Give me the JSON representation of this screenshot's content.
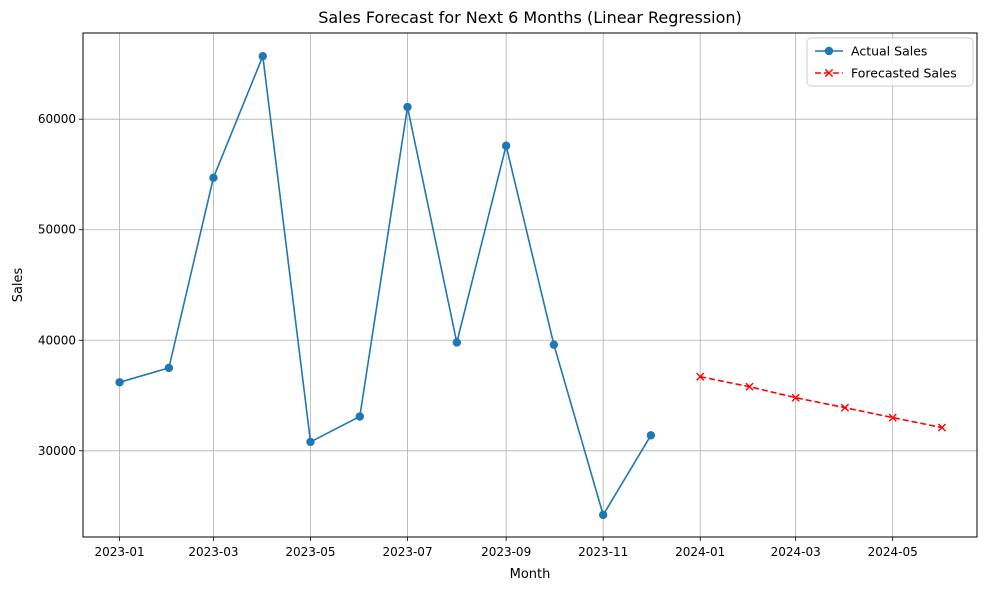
{
  "chart_data": {
    "type": "line",
    "title": "Sales Forecast for Next 6 Months (Linear Regression)",
    "xlabel": "Month",
    "ylabel": "Sales",
    "x_axis_type": "date",
    "xlim": [
      "2022-12-09",
      "2024-06-23"
    ],
    "ylim": [
      22200,
      67800
    ],
    "x_ticks": [
      "2023-01",
      "2023-03",
      "2023-05",
      "2023-07",
      "2023-09",
      "2023-11",
      "2024-01",
      "2024-03",
      "2024-05"
    ],
    "y_ticks": [
      30000,
      40000,
      50000,
      60000
    ],
    "grid": true,
    "legend_position": "top-right",
    "series": [
      {
        "name": "Actual Sales",
        "color": "#1f77b4",
        "marker": "circle",
        "line_style": "solid",
        "x": [
          "2023-01-01",
          "2023-02-01",
          "2023-03-01",
          "2023-04-01",
          "2023-05-01",
          "2023-06-01",
          "2023-07-01",
          "2023-08-01",
          "2023-09-01",
          "2023-10-01",
          "2023-11-01",
          "2023-12-01"
        ],
        "values": [
          36200,
          37500,
          54700,
          65700,
          30800,
          33100,
          61100,
          39800,
          57600,
          39600,
          24200,
          31400
        ]
      },
      {
        "name": "Forecasted Sales",
        "color": "#ff0000",
        "marker": "x",
        "line_style": "dashed",
        "x": [
          "2024-01-01",
          "2024-02-01",
          "2024-03-01",
          "2024-04-01",
          "2024-05-01",
          "2024-06-01"
        ],
        "values": [
          36700,
          35800,
          34800,
          33900,
          33000,
          32100
        ]
      }
    ]
  }
}
